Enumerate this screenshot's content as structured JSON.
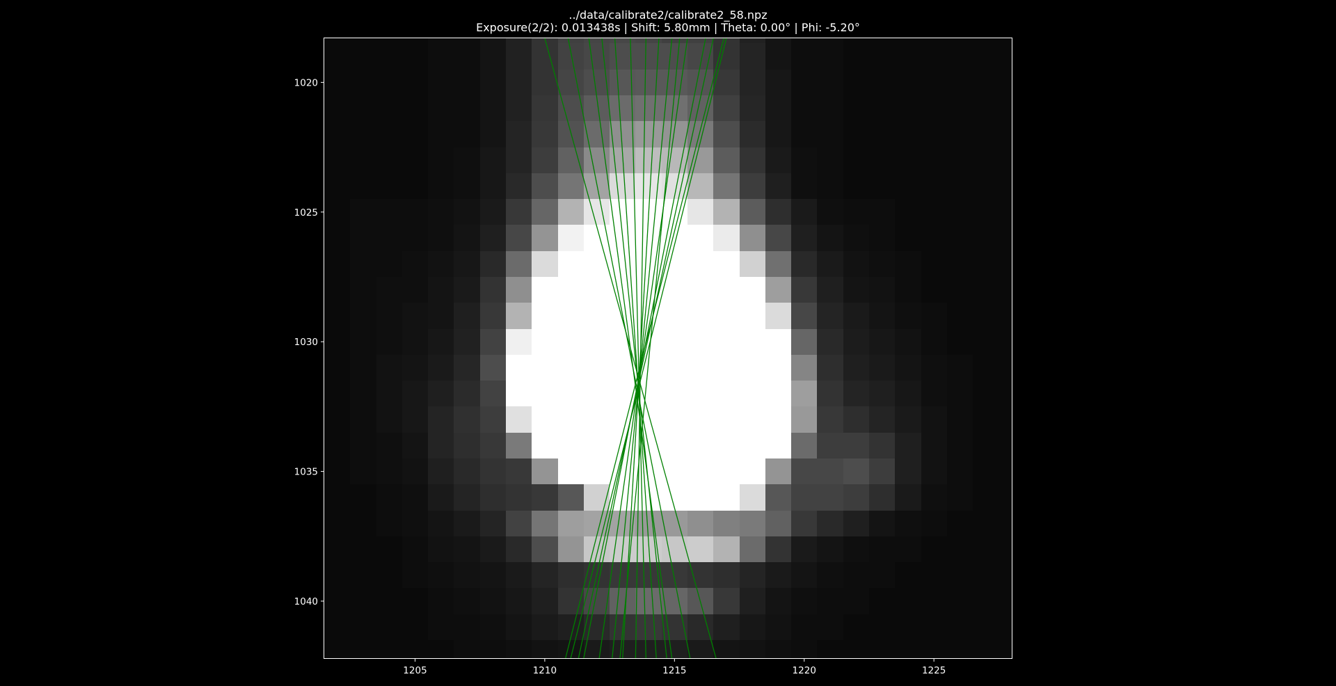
{
  "figure": {
    "title_line_1": "../data/calibrate2/calibrate2_58.npz",
    "title_line_2": "Exposure(2/2): 0.013438s | Shift:   5.80mm | Theta:   0.00° | Phi:  -5.20°"
  },
  "colors": {
    "background": "#000000",
    "axes_frame": "#ffffff",
    "ray_lines": "#008000",
    "text": "#ffffff"
  },
  "chart_data": {
    "type": "heatmap",
    "colormap": "gray",
    "title": "../data/calibrate2/calibrate2_58.npz",
    "subtitle": "Exposure(2/2): 0.013438s | Shift:   5.80mm | Theta:   0.00° | Phi:  -5.20°",
    "xlabel": "",
    "ylabel": "",
    "xlim": [
      1201.5,
      1228.0
    ],
    "ylim": [
      1042.2,
      1018.3
    ],
    "y_inverted": true,
    "grid": false,
    "x_ticks": [
      1205,
      1210,
      1215,
      1220,
      1225
    ],
    "y_ticks": [
      1020,
      1025,
      1030,
      1035,
      1040
    ],
    "pixel_grid": {
      "x_start": 1201.5,
      "y_start": 1017.5,
      "cols": 27,
      "rows": 25
    },
    "intensity_rows": [
      [
        0.04,
        0.04,
        0.04,
        0.04,
        0.05,
        0.05,
        0.08,
        0.13,
        0.2,
        0.25,
        0.27,
        0.28,
        0.27,
        0.25,
        0.25,
        0.2,
        0.13,
        0.08,
        0.05,
        0.05,
        0.04,
        0.04,
        0.04,
        0.04,
        0.04,
        0.04,
        0.04
      ],
      [
        0.04,
        0.04,
        0.04,
        0.04,
        0.05,
        0.05,
        0.08,
        0.13,
        0.2,
        0.26,
        0.28,
        0.3,
        0.3,
        0.3,
        0.28,
        0.2,
        0.14,
        0.08,
        0.05,
        0.05,
        0.04,
        0.04,
        0.04,
        0.04,
        0.04,
        0.04,
        0.04
      ],
      [
        0.04,
        0.04,
        0.04,
        0.04,
        0.05,
        0.05,
        0.08,
        0.13,
        0.2,
        0.27,
        0.3,
        0.34,
        0.35,
        0.35,
        0.33,
        0.22,
        0.14,
        0.09,
        0.05,
        0.05,
        0.04,
        0.04,
        0.04,
        0.04,
        0.04,
        0.04,
        0.04
      ],
      [
        0.04,
        0.04,
        0.04,
        0.04,
        0.05,
        0.05,
        0.08,
        0.13,
        0.21,
        0.3,
        0.36,
        0.42,
        0.44,
        0.44,
        0.38,
        0.25,
        0.15,
        0.09,
        0.05,
        0.05,
        0.04,
        0.04,
        0.04,
        0.04,
        0.04,
        0.04,
        0.04
      ],
      [
        0.04,
        0.04,
        0.04,
        0.04,
        0.05,
        0.05,
        0.08,
        0.14,
        0.22,
        0.32,
        0.42,
        0.56,
        0.6,
        0.58,
        0.48,
        0.3,
        0.17,
        0.09,
        0.05,
        0.05,
        0.04,
        0.04,
        0.04,
        0.04,
        0.04,
        0.04,
        0.04
      ],
      [
        0.04,
        0.04,
        0.04,
        0.04,
        0.05,
        0.06,
        0.09,
        0.14,
        0.24,
        0.38,
        0.54,
        0.66,
        0.74,
        0.72,
        0.6,
        0.36,
        0.2,
        0.1,
        0.06,
        0.05,
        0.04,
        0.04,
        0.04,
        0.04,
        0.04,
        0.04,
        0.04
      ],
      [
        0.04,
        0.04,
        0.04,
        0.04,
        0.05,
        0.06,
        0.09,
        0.16,
        0.3,
        0.46,
        0.64,
        0.86,
        0.9,
        0.88,
        0.72,
        0.46,
        0.24,
        0.12,
        0.06,
        0.05,
        0.04,
        0.04,
        0.04,
        0.04,
        0.04,
        0.04,
        0.04
      ],
      [
        0.04,
        0.05,
        0.05,
        0.05,
        0.06,
        0.07,
        0.1,
        0.22,
        0.4,
        0.7,
        0.9,
        1,
        1,
        1,
        0.9,
        0.7,
        0.36,
        0.18,
        0.1,
        0.06,
        0.05,
        0.05,
        0.04,
        0.04,
        0.04,
        0.04,
        0.04
      ],
      [
        0.04,
        0.05,
        0.05,
        0.05,
        0.06,
        0.08,
        0.12,
        0.28,
        0.58,
        0.95,
        1,
        1,
        1,
        1,
        1,
        0.92,
        0.56,
        0.28,
        0.12,
        0.08,
        0.06,
        0.05,
        0.04,
        0.04,
        0.04,
        0.04,
        0.04
      ],
      [
        0.04,
        0.05,
        0.05,
        0.06,
        0.07,
        0.09,
        0.16,
        0.42,
        0.86,
        1,
        1,
        1,
        1,
        1,
        1,
        1,
        0.82,
        0.44,
        0.16,
        0.1,
        0.07,
        0.06,
        0.05,
        0.04,
        0.04,
        0.04,
        0.04
      ],
      [
        0.04,
        0.05,
        0.06,
        0.06,
        0.08,
        0.1,
        0.2,
        0.56,
        1,
        1,
        1,
        1,
        1,
        1,
        1,
        1,
        1,
        0.62,
        0.22,
        0.12,
        0.08,
        0.07,
        0.05,
        0.04,
        0.04,
        0.04,
        0.04
      ],
      [
        0.04,
        0.05,
        0.06,
        0.07,
        0.08,
        0.12,
        0.22,
        0.7,
        1,
        1,
        1,
        1,
        1,
        1,
        1,
        1,
        1,
        0.86,
        0.28,
        0.14,
        0.1,
        0.08,
        0.06,
        0.05,
        0.04,
        0.04,
        0.04
      ],
      [
        0.04,
        0.05,
        0.06,
        0.07,
        0.09,
        0.13,
        0.26,
        0.94,
        1,
        1,
        1,
        1,
        1,
        1,
        1,
        1,
        1,
        1,
        0.4,
        0.16,
        0.11,
        0.09,
        0.07,
        0.05,
        0.04,
        0.04,
        0.04
      ],
      [
        0.04,
        0.05,
        0.07,
        0.08,
        0.1,
        0.15,
        0.3,
        1,
        1,
        1,
        1,
        1,
        1,
        1,
        1,
        1,
        1,
        1,
        0.52,
        0.18,
        0.12,
        0.1,
        0.08,
        0.06,
        0.05,
        0.04,
        0.04
      ],
      [
        0.04,
        0.05,
        0.07,
        0.09,
        0.12,
        0.17,
        0.26,
        1,
        1,
        1,
        1,
        1,
        1,
        1,
        1,
        1,
        1,
        1,
        0.62,
        0.2,
        0.14,
        0.12,
        0.09,
        0.06,
        0.05,
        0.04,
        0.04
      ],
      [
        0.04,
        0.05,
        0.07,
        0.09,
        0.14,
        0.19,
        0.24,
        0.88,
        1,
        1,
        1,
        1,
        1,
        1,
        1,
        1,
        1,
        1,
        0.6,
        0.22,
        0.18,
        0.14,
        0.1,
        0.07,
        0.05,
        0.04,
        0.04
      ],
      [
        0.04,
        0.05,
        0.06,
        0.08,
        0.14,
        0.18,
        0.22,
        0.48,
        1,
        1,
        1,
        1,
        1,
        1,
        1,
        1,
        1,
        1,
        0.42,
        0.24,
        0.24,
        0.2,
        0.12,
        0.07,
        0.05,
        0.04,
        0.04
      ],
      [
        0.04,
        0.05,
        0.06,
        0.07,
        0.12,
        0.16,
        0.2,
        0.22,
        0.58,
        1,
        1,
        1,
        1,
        1,
        1,
        1,
        1,
        0.58,
        0.28,
        0.28,
        0.3,
        0.24,
        0.12,
        0.07,
        0.05,
        0.04,
        0.04
      ],
      [
        0.04,
        0.04,
        0.05,
        0.06,
        0.1,
        0.14,
        0.18,
        0.2,
        0.22,
        0.34,
        0.82,
        1,
        1,
        1,
        1,
        1,
        0.86,
        0.34,
        0.26,
        0.26,
        0.24,
        0.18,
        0.1,
        0.06,
        0.05,
        0.04,
        0.04
      ],
      [
        0.04,
        0.04,
        0.05,
        0.06,
        0.08,
        0.1,
        0.14,
        0.26,
        0.46,
        0.62,
        0.64,
        0.64,
        0.6,
        0.6,
        0.56,
        0.5,
        0.48,
        0.38,
        0.22,
        0.16,
        0.12,
        0.08,
        0.06,
        0.05,
        0.04,
        0.04,
        0.04
      ],
      [
        0.04,
        0.04,
        0.04,
        0.05,
        0.07,
        0.08,
        0.1,
        0.16,
        0.3,
        0.58,
        0.78,
        0.8,
        0.8,
        0.78,
        0.8,
        0.7,
        0.42,
        0.2,
        0.1,
        0.08,
        0.06,
        0.05,
        0.05,
        0.04,
        0.04,
        0.04,
        0.04
      ],
      [
        0.04,
        0.04,
        0.04,
        0.05,
        0.06,
        0.07,
        0.08,
        0.1,
        0.14,
        0.18,
        0.2,
        0.22,
        0.22,
        0.22,
        0.2,
        0.18,
        0.14,
        0.1,
        0.08,
        0.06,
        0.05,
        0.05,
        0.04,
        0.04,
        0.04,
        0.04,
        0.04
      ],
      [
        0.04,
        0.04,
        0.04,
        0.04,
        0.05,
        0.06,
        0.07,
        0.09,
        0.12,
        0.2,
        0.28,
        0.38,
        0.42,
        0.4,
        0.34,
        0.22,
        0.12,
        0.08,
        0.06,
        0.05,
        0.05,
        0.04,
        0.04,
        0.04,
        0.04,
        0.04,
        0.04
      ],
      [
        0.04,
        0.04,
        0.04,
        0.04,
        0.05,
        0.05,
        0.06,
        0.08,
        0.1,
        0.12,
        0.16,
        0.2,
        0.22,
        0.2,
        0.16,
        0.12,
        0.09,
        0.07,
        0.05,
        0.05,
        0.04,
        0.04,
        0.04,
        0.04,
        0.04,
        0.04,
        0.04
      ],
      [
        0.04,
        0.04,
        0.04,
        0.04,
        0.04,
        0.05,
        0.05,
        0.06,
        0.07,
        0.08,
        0.1,
        0.12,
        0.12,
        0.12,
        0.1,
        0.08,
        0.07,
        0.06,
        0.05,
        0.04,
        0.04,
        0.04,
        0.04,
        0.04,
        0.04,
        0.04,
        0.04
      ]
    ],
    "overlay_lines": {
      "color": "#008000",
      "segments": [
        [
          [
            1210.0,
            1018.3
          ],
          [
            1216.6,
            1042.2
          ]
        ],
        [
          [
            1210.9,
            1018.3
          ],
          [
            1215.6,
            1042.2
          ]
        ],
        [
          [
            1211.7,
            1018.3
          ],
          [
            1214.9,
            1042.2
          ]
        ],
        [
          [
            1212.2,
            1018.3
          ],
          [
            1214.7,
            1042.2
          ]
        ],
        [
          [
            1212.7,
            1018.3
          ],
          [
            1214.3,
            1042.2
          ]
        ],
        [
          [
            1213.3,
            1018.3
          ],
          [
            1213.9,
            1042.2
          ]
        ],
        [
          [
            1213.9,
            1018.3
          ],
          [
            1213.5,
            1042.2
          ]
        ],
        [
          [
            1214.4,
            1018.3
          ],
          [
            1213.0,
            1042.2
          ]
        ],
        [
          [
            1214.9,
            1018.3
          ],
          [
            1212.6,
            1042.2
          ]
        ],
        [
          [
            1215.5,
            1018.3
          ],
          [
            1212.1,
            1042.2
          ]
        ],
        [
          [
            1216.2,
            1018.3
          ],
          [
            1211.5,
            1042.2
          ]
        ],
        [
          [
            1216.9,
            1018.3
          ],
          [
            1210.8,
            1042.2
          ]
        ],
        [
          [
            1215.2,
            1018.3
          ],
          [
            1212.9,
            1042.2
          ]
        ],
        [
          [
            1216.5,
            1018.3
          ],
          [
            1211.3,
            1042.2
          ]
        ],
        [
          [
            1217.0,
            1018.3
          ],
          [
            1211.0,
            1042.2
          ]
        ]
      ]
    }
  }
}
